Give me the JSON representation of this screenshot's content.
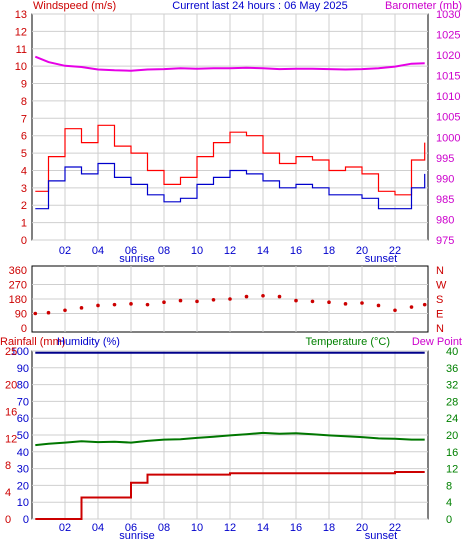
{
  "header": {
    "left_title": "Windspeed (m/s)",
    "center_title": "Current last 24 hours : 06 May 2025",
    "right_title": "Barometer (mb)"
  },
  "panels": {
    "middle_axis_labels": [
      "360",
      "270",
      "180",
      "90",
      "0"
    ],
    "middle_right_labels": [
      "N",
      "W",
      "S",
      "E",
      "N"
    ],
    "bottom_titles": {
      "rainfall": "Rainfall (mm)",
      "humidity": "Humidity (%)",
      "temperature": "Temperature (°C)",
      "dewpoint": "Dew Point"
    },
    "x_ticks": [
      "02",
      "04",
      "06",
      "08",
      "10",
      "12",
      "14",
      "16",
      "18",
      "20",
      "22"
    ],
    "sunrise_label": "sunrise",
    "sunset_label": "sunset"
  },
  "colors": {
    "wind_gust": "#ff0000",
    "wind_avg": "#0000cc",
    "barometer": "#e600e6",
    "direction": "#cc0000",
    "humidity": "#00008b",
    "temperature": "#007700",
    "rain": "#cc0000",
    "axis_blue": "#0000cc",
    "axis_green": "#008000",
    "axis_red": "#cc0000",
    "axis_magenta": "#cc00cc"
  },
  "chart_data": [
    {
      "type": "line",
      "title": "Current last 24 hours : 06 May 2025",
      "ylabel_left": "Windspeed (m/s)",
      "ylabel_right": "Barometer (mb)",
      "ylim_left": [
        0,
        13
      ],
      "ylim_right": [
        975,
        1030
      ],
      "yticks_left": [
        "0",
        "1",
        "2",
        "3",
        "4",
        "5",
        "6",
        "7",
        "8",
        "9",
        "10",
        "11",
        "12",
        "13"
      ],
      "yticks_right": [
        "975",
        "980",
        "985",
        "990",
        "995",
        "1000",
        "1005",
        "1010",
        "1015",
        "1020",
        "1025",
        "1030"
      ],
      "xlim": [
        0,
        24
      ],
      "x": [
        0.2,
        1,
        2,
        3,
        4,
        5,
        6,
        7,
        8,
        9,
        10,
        11,
        12,
        13,
        14,
        15,
        16,
        17,
        18,
        19,
        20,
        21,
        22,
        23,
        23.8
      ],
      "series": [
        {
          "key": "gust",
          "axis": "left",
          "values": [
            2.8,
            4.8,
            6.4,
            5.6,
            6.6,
            5.4,
            5.0,
            4.0,
            3.2,
            3.6,
            4.8,
            5.6,
            6.2,
            6.0,
            5.0,
            4.4,
            4.8,
            4.6,
            4.0,
            4.2,
            3.8,
            2.8,
            2.6,
            4.6,
            5.6
          ]
        },
        {
          "key": "average",
          "axis": "left",
          "values": [
            1.8,
            3.4,
            4.2,
            3.8,
            4.4,
            3.6,
            3.2,
            2.6,
            2.2,
            2.4,
            3.2,
            3.6,
            4.0,
            3.8,
            3.4,
            3.0,
            3.2,
            3.0,
            2.6,
            2.6,
            2.4,
            1.8,
            1.8,
            3.0,
            3.8
          ]
        },
        {
          "key": "barometer",
          "axis": "right",
          "values": [
            1019.6,
            1018.3,
            1017.4,
            1017.1,
            1016.5,
            1016.3,
            1016.2,
            1016.5,
            1016.6,
            1016.8,
            1016.7,
            1016.8,
            1016.8,
            1016.9,
            1016.8,
            1016.6,
            1016.7,
            1016.7,
            1016.6,
            1016.5,
            1016.6,
            1016.8,
            1017.2,
            1017.9,
            1018.0
          ]
        }
      ]
    },
    {
      "type": "scatter",
      "ylabel": "Wind direction",
      "ylim": [
        0,
        360
      ],
      "x": [
        0.2,
        1,
        2,
        3,
        4,
        5,
        6,
        7,
        8,
        9,
        10,
        11,
        12,
        13,
        14,
        15,
        16,
        17,
        18,
        19,
        20,
        21,
        22,
        23,
        23.8
      ],
      "values": [
        90,
        95,
        110,
        125,
        140,
        145,
        150,
        145,
        160,
        170,
        165,
        175,
        180,
        195,
        200,
        195,
        170,
        165,
        160,
        150,
        155,
        140,
        110,
        130,
        145
      ]
    },
    {
      "type": "line",
      "ylim_left_rainfall": [
        0,
        25
      ],
      "ylim_left_humidity": [
        0,
        100
      ],
      "ylim_right_temperature": [
        0,
        40
      ],
      "yticks_rainfall": [
        "0",
        "4",
        "8",
        "12",
        "16",
        "20",
        "25"
      ],
      "yticks_humidity": [
        "0",
        "10",
        "20",
        "30",
        "40",
        "50",
        "60",
        "70",
        "80",
        "90",
        "100"
      ],
      "yticks_temperature": [
        "0",
        "4",
        "8",
        "12",
        "16",
        "20",
        "24",
        "28",
        "32",
        "36",
        "40"
      ],
      "x": [
        0.2,
        1,
        2,
        3,
        4,
        5,
        6,
        7,
        8,
        9,
        10,
        11,
        12,
        13,
        14,
        15,
        16,
        17,
        18,
        19,
        20,
        21,
        22,
        23,
        23.8
      ],
      "series": [
        {
          "key": "humidity",
          "axis": "humidity",
          "values": [
            99,
            99,
            99,
            99,
            99,
            99,
            99,
            99,
            99,
            99,
            99,
            99,
            99,
            99,
            99,
            99,
            99,
            99,
            99,
            99,
            99,
            99,
            99,
            99,
            99
          ]
        },
        {
          "key": "temperature",
          "axis": "temperature",
          "values": [
            17.6,
            17.9,
            18.2,
            18.5,
            18.3,
            18.4,
            18.2,
            18.6,
            18.9,
            19.0,
            19.3,
            19.6,
            19.9,
            20.2,
            20.5,
            20.3,
            20.4,
            20.2,
            19.9,
            19.7,
            19.5,
            19.2,
            19.1,
            18.9,
            18.9
          ]
        },
        {
          "key": "rainfall",
          "axis": "rainfall",
          "values": [
            0,
            0,
            0,
            3.2,
            3.2,
            3.2,
            5.4,
            6.6,
            6.6,
            6.6,
            6.6,
            6.6,
            6.8,
            6.8,
            6.8,
            6.8,
            6.8,
            6.8,
            6.8,
            6.8,
            6.8,
            6.8,
            7.0,
            7.0,
            7.0
          ]
        }
      ]
    }
  ]
}
